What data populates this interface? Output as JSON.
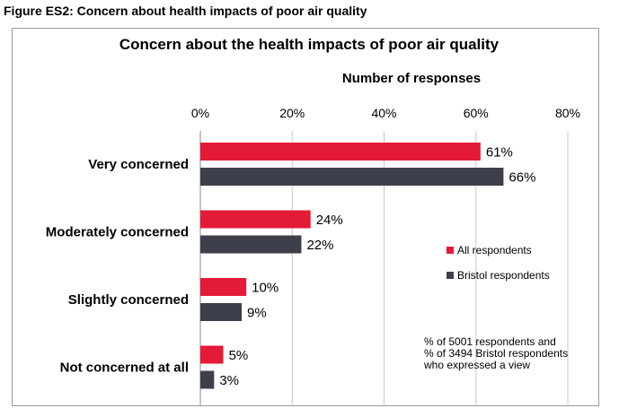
{
  "figure_caption": "Figure ES2: Concern about health impacts of poor air quality",
  "chart_data": {
    "type": "bar",
    "orientation": "horizontal",
    "title": "Concern about the health impacts of poor air quality",
    "xlabel": "Number of responses",
    "ylabel": "",
    "xlim": [
      0,
      80
    ],
    "x_ticks": [
      "0%",
      "20%",
      "40%",
      "60%",
      "80%"
    ],
    "grid": true,
    "legend_position": "right",
    "categories": [
      "Very concerned",
      "Moderately concerned",
      "Slightly concerned",
      "Not concerned at all"
    ],
    "series": [
      {
        "name": "All respondents",
        "color": "#e31b37",
        "values": [
          61,
          24,
          10,
          5
        ],
        "labels": [
          "61%",
          "24%",
          "10%",
          "5%"
        ]
      },
      {
        "name": "Bristol respondents",
        "color": "#3d3f4a",
        "values": [
          66,
          22,
          9,
          3
        ],
        "labels": [
          "66%",
          "22%",
          "9%",
          "3%"
        ]
      }
    ],
    "annotation": [
      "% of 5001 respondents and",
      "% of 3494 Bristol respondents",
      "who expressed a view"
    ]
  }
}
